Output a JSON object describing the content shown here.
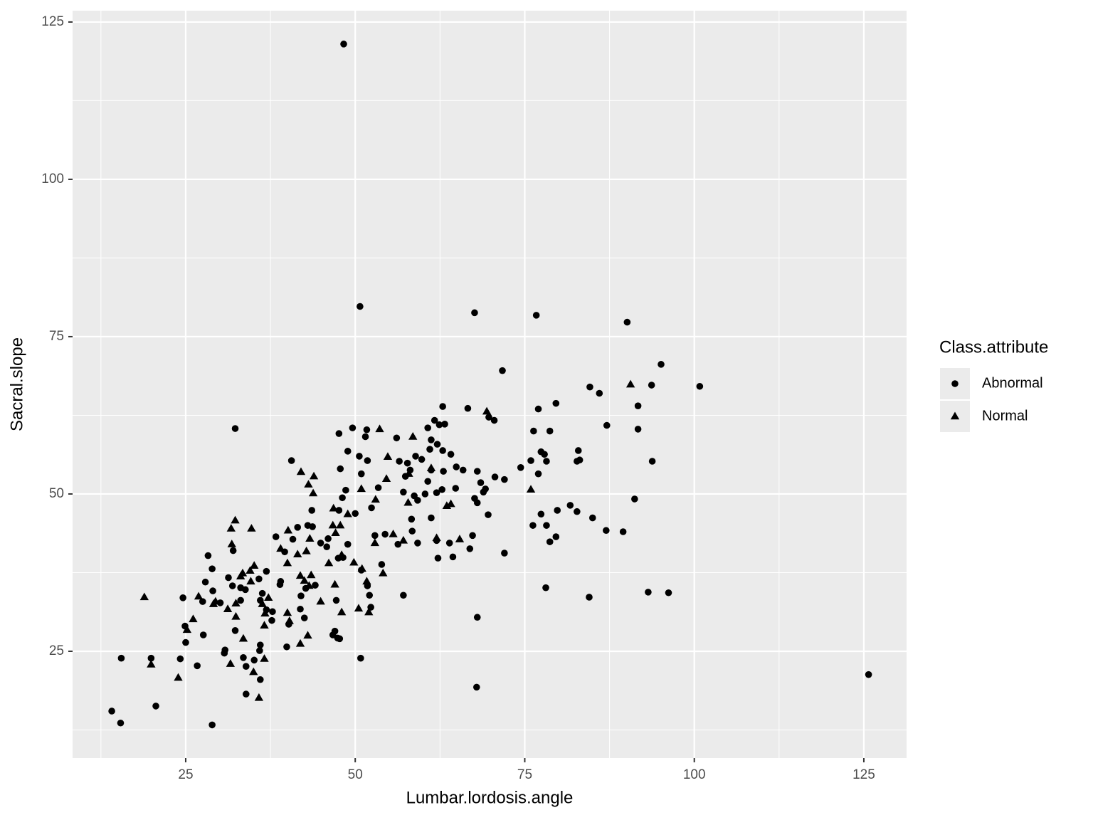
{
  "chart_data": {
    "type": "scatter",
    "x_label": "Lumbar.lordosis.angle",
    "y_label": "Sacral.slope",
    "legend_title": "Class.attribute",
    "legend_position": "right",
    "grid": true,
    "xlim": [
      8.32,
      131.3
    ],
    "ylim": [
      8.03,
      126.8
    ],
    "xticks": [
      25,
      50,
      75,
      100,
      125
    ],
    "yticks": [
      25,
      50,
      75,
      100,
      125
    ],
    "series": [
      {
        "name": "Abnormal",
        "shape": "circle",
        "color": "#000000",
        "x": [
          48.3,
          50.7,
          67.6,
          76.7,
          90.1,
          95.1,
          100.8,
          93.7,
          84.6,
          86.0,
          91.7,
          91.7,
          87.1,
          93.8,
          91.2,
          71.7,
          32.3,
          125.7,
          89.5,
          87.0,
          85.0,
          82.7,
          81.7,
          79.8,
          79.6,
          78.7,
          78.2,
          77.4,
          76.2,
          78.1,
          84.5,
          93.2,
          96.2,
          79.6,
          77.0,
          76.3,
          78.7,
          75.9,
          77.4,
          77.9,
          78.2,
          77.0,
          74.4,
          82.9,
          82.7,
          83.1,
          72.0,
          68.0,
          67.9,
          66.6,
          62.9,
          63.2,
          62.4,
          61.7,
          60.7,
          61.2,
          62.1,
          61.0,
          62.9,
          64.1,
          56.1,
          49.6,
          51.7,
          47.6,
          51.5,
          48.9,
          50.6,
          51.8,
          50.9,
          47.8,
          48.6,
          48.1,
          47.6,
          50.0,
          52.4,
          53.4,
          56.5,
          57.7,
          58.9,
          59.8,
          58.1,
          57.4,
          57.1,
          58.7,
          59.2,
          60.3,
          60.7,
          61.2,
          63.0,
          62.0,
          62.8,
          61.2,
          64.8,
          65.9,
          64.9,
          68.0,
          68.9,
          69.2,
          68.5,
          70.6,
          72.0,
          67.6,
          68.0,
          69.6,
          67.3,
          66.9,
          70.5,
          69.7,
          63.9,
          64.4,
          62.2,
          62.0,
          58.3,
          58.4,
          59.2,
          57.1,
          56.3,
          54.4,
          52.9,
          48.9,
          47.5,
          48.2,
          46.0,
          44.9,
          43.7,
          43.0,
          43.6,
          41.5,
          40.6,
          45.8,
          40.8,
          39.6,
          38.3,
          53.9,
          50.9,
          51.8,
          52.1,
          52.3,
          50.8,
          47.4,
          47.0,
          46.7,
          47.7,
          47.2,
          44.1,
          42.7,
          42.0,
          41.9,
          42.5,
          40.2,
          39.9,
          38.9,
          39.0,
          37.8,
          37.7,
          36.9,
          35.8,
          36.3,
          36.0,
          36.0,
          35.9,
          36.0,
          35.1,
          33.9,
          33.5,
          33.9,
          33.1,
          33.8,
          33.1,
          31.9,
          31.3,
          32.0,
          32.3,
          30.8,
          30.7,
          30.1,
          29.0,
          28.9,
          28.3,
          27.9,
          27.5,
          27.6,
          26.7,
          25.0,
          24.9,
          24.6,
          24.2,
          28.9,
          20.6,
          19.9,
          15.5,
          15.4,
          14.1,
          36.9
        ],
        "values": [
          121.5,
          79.8,
          78.8,
          78.4,
          77.3,
          70.6,
          67.1,
          67.3,
          67.0,
          66.0,
          64.0,
          60.3,
          60.9,
          55.2,
          49.2,
          69.6,
          60.4,
          21.3,
          44.0,
          44.2,
          46.2,
          47.2,
          48.2,
          47.4,
          43.2,
          42.4,
          45.0,
          46.8,
          45.0,
          35.1,
          33.6,
          34.4,
          34.3,
          64.4,
          63.5,
          60.0,
          60.0,
          55.3,
          56.7,
          56.3,
          55.2,
          53.2,
          54.2,
          56.9,
          55.2,
          55.4,
          40.6,
          30.4,
          19.3,
          63.6,
          63.9,
          61.1,
          61.0,
          61.7,
          60.5,
          58.6,
          57.9,
          57.1,
          56.9,
          56.3,
          58.9,
          60.5,
          60.2,
          59.6,
          59.1,
          56.8,
          56.0,
          55.3,
          53.2,
          54.0,
          50.6,
          49.4,
          47.4,
          46.9,
          47.8,
          51.0,
          55.2,
          54.9,
          56.0,
          55.5,
          53.8,
          52.8,
          50.3,
          49.7,
          49.0,
          50.0,
          52.0,
          53.8,
          53.6,
          50.2,
          50.7,
          46.2,
          50.9,
          53.8,
          54.3,
          53.6,
          50.3,
          50.8,
          51.8,
          52.7,
          52.3,
          49.3,
          48.6,
          46.7,
          43.4,
          41.3,
          61.7,
          62.2,
          42.2,
          40.0,
          39.8,
          42.6,
          46.0,
          44.1,
          42.2,
          33.9,
          42.0,
          43.6,
          43.4,
          42.0,
          39.8,
          39.9,
          42.9,
          42.2,
          44.8,
          45.0,
          47.4,
          44.7,
          55.3,
          41.6,
          42.8,
          40.8,
          43.2,
          38.8,
          37.9,
          35.4,
          33.9,
          32.0,
          23.9,
          27.1,
          28.2,
          27.6,
          27.0,
          33.1,
          35.5,
          35.0,
          33.8,
          31.7,
          30.3,
          29.3,
          25.7,
          35.6,
          36.1,
          31.3,
          29.9,
          37.7,
          36.5,
          34.2,
          33.1,
          26.0,
          25.1,
          20.5,
          23.6,
          18.2,
          24.0,
          22.6,
          33.1,
          34.8,
          35.1,
          35.4,
          36.7,
          41.0,
          28.3,
          25.2,
          24.7,
          32.7,
          34.6,
          38.1,
          40.2,
          36.0,
          32.9,
          27.6,
          22.7,
          26.4,
          29.0,
          33.5,
          23.8,
          13.3,
          16.3,
          23.9,
          23.9,
          13.6,
          15.5,
          31.6
        ]
      },
      {
        "name": "Normal",
        "shape": "triangle",
        "color": "#000000",
        "x": [
          90.6,
          69.4,
          75.9,
          65.4,
          62.0,
          53.6,
          54.6,
          54.8,
          58.5,
          61.2,
          57.9,
          57.8,
          64.1,
          63.5,
          57.1,
          55.6,
          53.0,
          50.9,
          48.9,
          46.8,
          46.7,
          47.8,
          47.1,
          46.1,
          48.0,
          49.8,
          51.0,
          54.1,
          51.7,
          52.9,
          50.5,
          52.0,
          48.0,
          47.0,
          44.9,
          43.5,
          43.2,
          42.5,
          43.0,
          41.9,
          41.9,
          41.5,
          42.8,
          43.3,
          43.9,
          43.1,
          43.8,
          42.0,
          40.1,
          39.0,
          40.0,
          40.0,
          40.3,
          36.6,
          35.8,
          35.0,
          36.7,
          36.6,
          37.2,
          36.3,
          35.1,
          34.5,
          33.4,
          34.6,
          33.1,
          34.7,
          32.3,
          31.7,
          31.8,
          32.4,
          31.2,
          32.4,
          33.5,
          31.6,
          29.4,
          29.1,
          26.9,
          26.1,
          25.2,
          23.9,
          19.9,
          18.9
        ],
        "values": [
          67.4,
          63.1,
          50.7,
          42.8,
          43.0,
          60.3,
          52.4,
          55.9,
          59.1,
          54.1,
          53.2,
          48.6,
          48.4,
          48.1,
          42.6,
          43.6,
          49.1,
          50.8,
          46.8,
          47.7,
          45.0,
          45.0,
          43.8,
          39.0,
          40.3,
          39.1,
          38.1,
          37.4,
          36.1,
          42.2,
          31.8,
          31.2,
          31.2,
          35.6,
          32.9,
          37.1,
          35.4,
          36.2,
          27.5,
          26.2,
          37.0,
          40.4,
          40.9,
          42.9,
          52.8,
          51.5,
          50.1,
          53.5,
          44.2,
          41.3,
          39.0,
          31.1,
          29.8,
          23.8,
          17.6,
          21.7,
          31.0,
          29.1,
          33.5,
          32.5,
          38.6,
          37.8,
          37.4,
          36.1,
          36.9,
          44.5,
          45.8,
          44.5,
          42.0,
          30.5,
          31.7,
          32.6,
          27.0,
          23.0,
          32.9,
          32.5,
          33.7,
          30.1,
          28.4,
          20.8,
          22.9,
          33.6
        ]
      }
    ]
  }
}
